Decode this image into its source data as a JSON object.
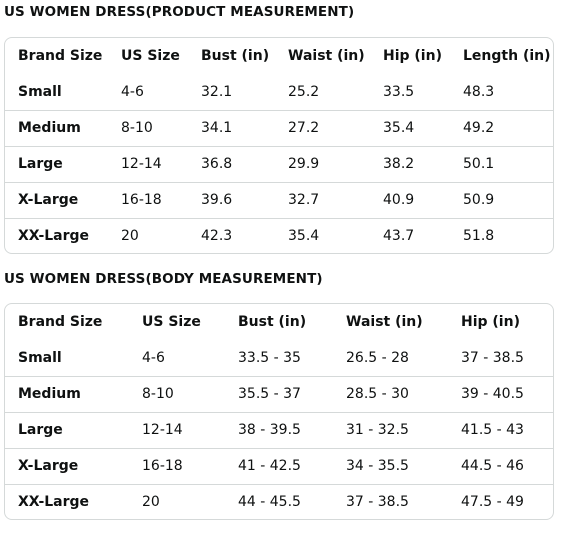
{
  "product_measurement": {
    "title": "US WOMEN DRESS(PRODUCT MEASUREMENT)",
    "headers": [
      "Brand Size",
      "US Size",
      "Bust (in)",
      "Waist (in)",
      "Hip (in)",
      "Length (in)"
    ],
    "rows": [
      [
        "Small",
        "4-6",
        "32.1",
        "25.2",
        "33.5",
        "48.3"
      ],
      [
        "Medium",
        "8-10",
        "34.1",
        "27.2",
        "35.4",
        "49.2"
      ],
      [
        "Large",
        "12-14",
        "36.8",
        "29.9",
        "38.2",
        "50.1"
      ],
      [
        "X-Large",
        "16-18",
        "39.6",
        "32.7",
        "40.9",
        "50.9"
      ],
      [
        "XX-Large",
        "20",
        "42.3",
        "35.4",
        "43.7",
        "51.8"
      ]
    ]
  },
  "body_measurement": {
    "title": "US WOMEN DRESS(BODY MEASUREMENT)",
    "headers": [
      "Brand Size",
      "US Size",
      "Bust (in)",
      "Waist (in)",
      "Hip (in)"
    ],
    "rows": [
      [
        "Small",
        "4-6",
        "33.5 - 35",
        "26.5 - 28",
        "37 - 38.5"
      ],
      [
        "Medium",
        "8-10",
        "35.5 - 37",
        "28.5 - 30",
        "39 - 40.5"
      ],
      [
        "Large",
        "12-14",
        "38 - 39.5",
        "31 - 32.5",
        "41.5 - 43"
      ],
      [
        "X-Large",
        "16-18",
        "41 - 42.5",
        "34 - 35.5",
        "44.5 - 46"
      ],
      [
        "XX-Large",
        "20",
        "44 - 45.5",
        "37 - 38.5",
        "47.5 - 49"
      ]
    ]
  }
}
